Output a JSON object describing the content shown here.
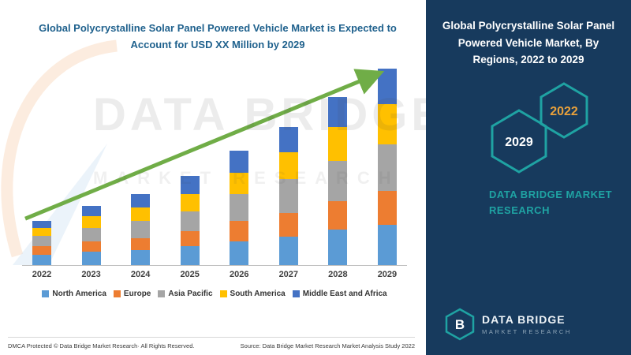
{
  "page": {
    "background": "#FFFFFF",
    "panel_background": "#173A5D",
    "accent_teal": "#1FA3A3",
    "title_color": "#1F618D"
  },
  "chart_data": {
    "type": "bar",
    "stacked": true,
    "title": "Global Polycrystalline Solar Panel Powered Vehicle Market is Expected to Account for USD XX Million by 2029",
    "categories": [
      "2022",
      "2023",
      "2024",
      "2025",
      "2026",
      "2027",
      "2028",
      "2029"
    ],
    "series": [
      {
        "name": "North America",
        "color": "#5B9BD5",
        "values": [
          3,
          4,
          4.5,
          5.5,
          7,
          8.5,
          10.5,
          12
        ]
      },
      {
        "name": "Europe",
        "color": "#ED7D31",
        "values": [
          2.5,
          3,
          3.5,
          4.5,
          6,
          7,
          8.5,
          10
        ]
      },
      {
        "name": "Asia Pacific",
        "color": "#A5A5A5",
        "values": [
          3,
          4,
          5,
          6,
          8,
          10,
          12,
          14
        ]
      },
      {
        "name": "South America",
        "color": "#FFC000",
        "values": [
          2.5,
          3.5,
          4,
          5,
          6.5,
          8,
          10,
          12
        ]
      },
      {
        "name": "Middle East and Africa",
        "color": "#4472C4",
        "values": [
          2,
          3,
          4,
          5.5,
          6.5,
          7.5,
          9,
          10.5
        ]
      }
    ],
    "xlabel": "",
    "ylabel": "",
    "ylim": [
      0,
      60
    ],
    "yaxis_visible": false,
    "grid": false,
    "legend_position": "bottom",
    "annotations": [
      "upward trend arrow across bars"
    ],
    "arrow_color": "#70AD47"
  },
  "left": {
    "watermark": {
      "line1": "DATA BRIDGE",
      "line2": "MARKET RESEARCH"
    },
    "footer": {
      "left": "DMCA Protected © Data Bridge Market Research· All Rights Reserved.",
      "right": "Source: Data Bridge Market Research Market Analysis Study 2022"
    }
  },
  "right_panel": {
    "title": "Global Polycrystalline Solar Panel Powered Vehicle Market, By Regions, 2022 to 2029",
    "hexagons": [
      {
        "label": "2029",
        "text_color": "#FFFFFF"
      },
      {
        "label": "2022",
        "text_color": "#E9A13B"
      }
    ],
    "brand_caption": "DATA BRIDGE MARKET RESEARCH",
    "logo_letter": "B",
    "logo_title": "DATA BRIDGE",
    "logo_subtitle": "MARKET RESEARCH"
  }
}
